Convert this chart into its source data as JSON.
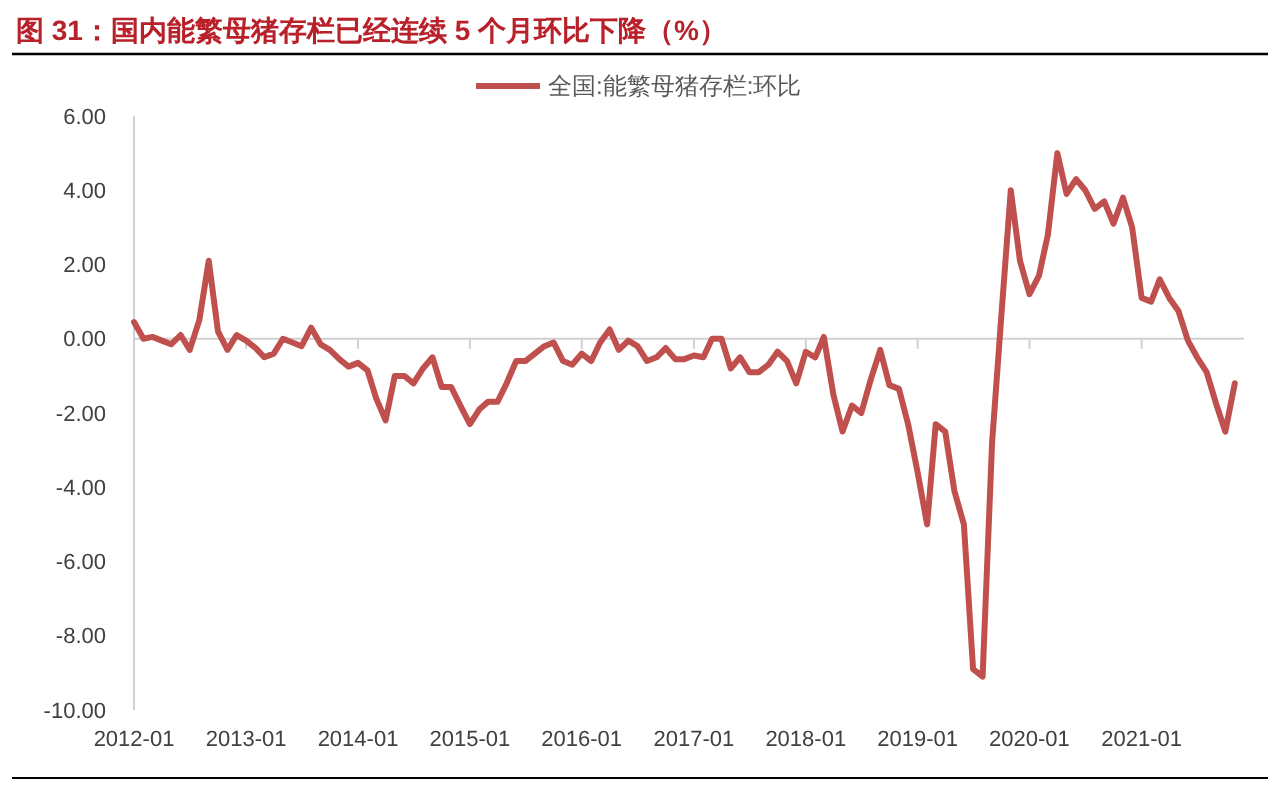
{
  "chart_data": {
    "type": "line",
    "title": "图 31：国内能繁母猪存栏已经连续 5 个月环比下降（%）",
    "x": [
      "2012-01",
      "2012-02",
      "2012-03",
      "2012-04",
      "2012-05",
      "2012-06",
      "2012-07",
      "2012-08",
      "2012-09",
      "2012-10",
      "2012-11",
      "2012-12",
      "2013-01",
      "2013-02",
      "2013-03",
      "2013-04",
      "2013-05",
      "2013-06",
      "2013-07",
      "2013-08",
      "2013-09",
      "2013-10",
      "2013-11",
      "2013-12",
      "2014-01",
      "2014-02",
      "2014-03",
      "2014-04",
      "2014-05",
      "2014-06",
      "2014-07",
      "2014-08",
      "2014-09",
      "2014-10",
      "2014-11",
      "2014-12",
      "2015-01",
      "2015-02",
      "2015-03",
      "2015-04",
      "2015-05",
      "2015-06",
      "2015-07",
      "2015-08",
      "2015-09",
      "2015-10",
      "2015-11",
      "2015-12",
      "2016-01",
      "2016-02",
      "2016-03",
      "2016-04",
      "2016-05",
      "2016-06",
      "2016-07",
      "2016-08",
      "2016-09",
      "2016-10",
      "2016-11",
      "2016-12",
      "2017-01",
      "2017-02",
      "2017-03",
      "2017-04",
      "2017-05",
      "2017-06",
      "2017-07",
      "2017-08",
      "2017-09",
      "2017-10",
      "2017-11",
      "2017-12",
      "2018-01",
      "2018-02",
      "2018-03",
      "2018-04",
      "2018-05",
      "2018-06",
      "2018-07",
      "2018-08",
      "2018-09",
      "2018-10",
      "2018-11",
      "2018-12",
      "2019-01",
      "2019-02",
      "2019-03",
      "2019-04",
      "2019-05",
      "2019-06",
      "2019-07",
      "2019-08",
      "2019-09",
      "2019-10",
      "2019-11",
      "2019-12",
      "2020-01",
      "2020-02",
      "2020-03",
      "2020-04",
      "2020-05",
      "2020-06",
      "2020-07",
      "2020-08",
      "2020-09",
      "2020-10",
      "2020-11",
      "2020-12",
      "2021-01",
      "2021-02",
      "2021-03",
      "2021-04",
      "2021-05",
      "2021-06",
      "2021-07",
      "2021-08",
      "2021-09",
      "2021-10",
      "2021-11"
    ],
    "series": [
      {
        "name": "全国:能繁母猪存栏:环比",
        "color": "#c0504d",
        "values": [
          0.45,
          0.0,
          0.05,
          -0.05,
          -0.15,
          0.1,
          -0.3,
          0.5,
          2.1,
          0.2,
          -0.3,
          0.1,
          -0.05,
          -0.25,
          -0.5,
          -0.4,
          0.0,
          -0.1,
          -0.2,
          0.3,
          -0.15,
          -0.3,
          -0.55,
          -0.75,
          -0.65,
          -0.85,
          -1.6,
          -2.2,
          -1.0,
          -1.0,
          -1.2,
          -0.8,
          -0.5,
          -1.3,
          -1.3,
          -1.8,
          -2.3,
          -1.9,
          -1.7,
          -1.7,
          -1.2,
          -0.6,
          -0.6,
          -0.4,
          -0.2,
          -0.1,
          -0.6,
          -0.7,
          -0.4,
          -0.6,
          -0.1,
          0.25,
          -0.3,
          -0.05,
          -0.2,
          -0.6,
          -0.5,
          -0.25,
          -0.55,
          -0.55,
          -0.45,
          -0.5,
          0.0,
          0.0,
          -0.8,
          -0.5,
          -0.9,
          -0.9,
          -0.7,
          -0.35,
          -0.6,
          -1.2,
          -0.35,
          -0.5,
          0.05,
          -1.5,
          -2.5,
          -1.8,
          -2.0,
          -1.1,
          -0.3,
          -1.25,
          -1.35,
          -2.3,
          -3.6,
          -5.0,
          -2.3,
          -2.5,
          -4.1,
          -5.0,
          -8.9,
          -9.1,
          -2.8,
          0.6,
          4.0,
          2.1,
          1.2,
          1.7,
          2.8,
          5.0,
          3.9,
          4.3,
          4.0,
          3.5,
          3.7,
          3.1,
          3.8,
          3.0,
          1.1,
          1.0,
          1.6,
          1.1,
          0.75,
          -0.05,
          -0.5,
          -0.9,
          -1.75,
          -2.5,
          -1.2
        ]
      }
    ],
    "xlim": [
      "2012-01",
      "2021-12"
    ],
    "xticks": [
      "2012-01",
      "2013-01",
      "2014-01",
      "2015-01",
      "2016-01",
      "2017-01",
      "2018-01",
      "2019-01",
      "2020-01",
      "2021-01"
    ],
    "ylim": [
      -10,
      6
    ],
    "yticks": [
      {
        "value": 6,
        "label": "6.00"
      },
      {
        "value": 4,
        "label": "4.00"
      },
      {
        "value": 2,
        "label": "2.00"
      },
      {
        "value": 0,
        "label": "0.00"
      },
      {
        "value": -2,
        "label": "-2.00"
      },
      {
        "value": -4,
        "label": "-4.00"
      },
      {
        "value": -6,
        "label": "-6.00"
      },
      {
        "value": -8,
        "label": "-8.00"
      },
      {
        "value": -10,
        "label": "-10.00"
      }
    ],
    "legend": "top",
    "line_style": "solid",
    "marker": "none"
  }
}
